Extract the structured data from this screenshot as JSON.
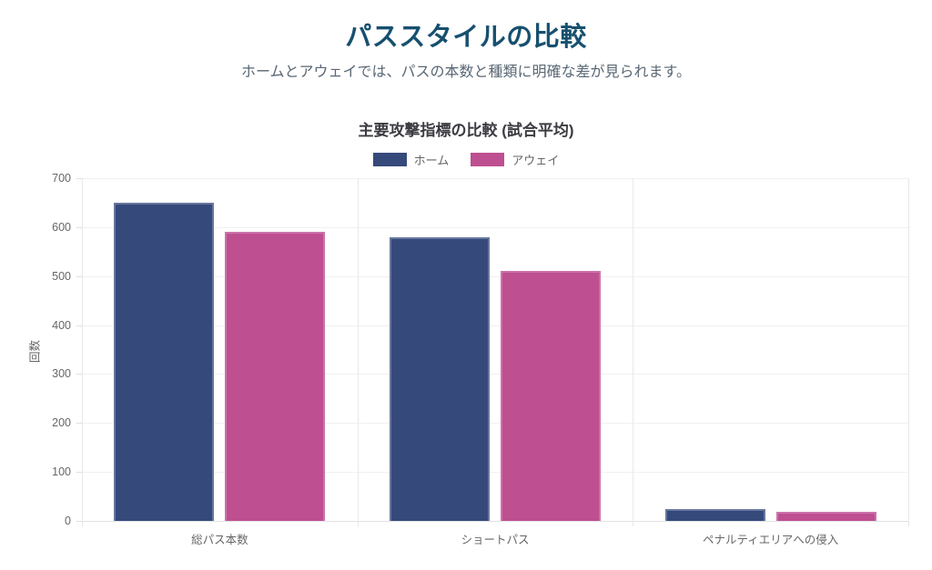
{
  "page": {
    "title": "パススタイルの比較",
    "subtitle": "ホームとアウェイでは、パスの本数と種類に明確な差が見られます。",
    "title_color": "#17506F",
    "subtitle_color": "#5A6774"
  },
  "chart_data": {
    "type": "bar",
    "title": "主要攻撃指標の比較 (試合平均)",
    "categories": [
      "総パス本数",
      "ショートパス",
      "ペナルティエリアへの侵入"
    ],
    "series": [
      {
        "name": "ホーム",
        "values": [
          650,
          580,
          25
        ],
        "color": "#36497B",
        "border_color": "#68779F"
      },
      {
        "name": "アウェイ",
        "values": [
          590,
          510,
          18
        ],
        "color": "#BE4F90",
        "border_color": "#CB73A9"
      }
    ],
    "xlabel": "",
    "ylabel": "回数",
    "ylim": [
      0,
      700
    ],
    "ytick_step": 100,
    "grid": true,
    "legend_position": "top"
  }
}
